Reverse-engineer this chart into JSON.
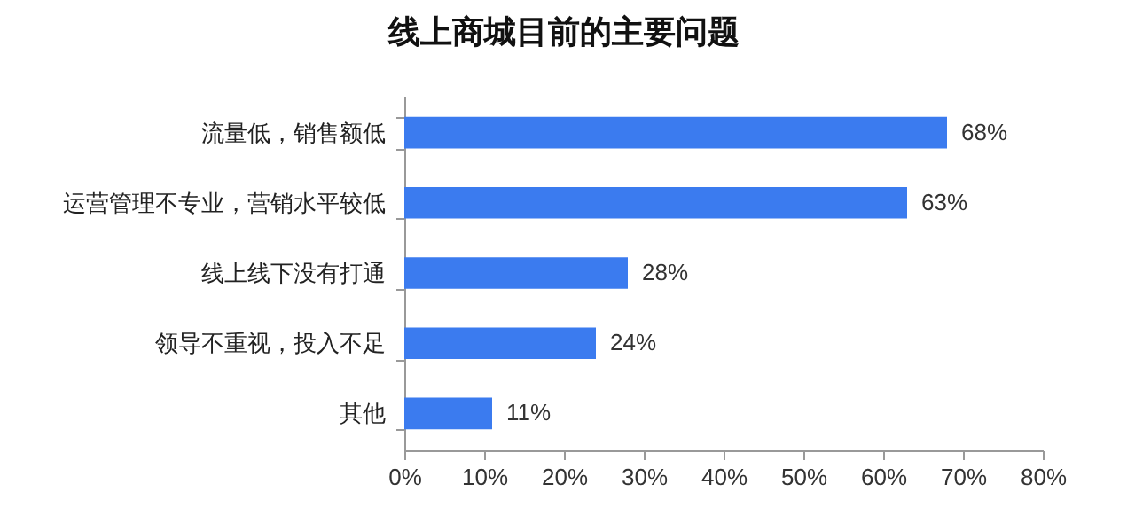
{
  "chart_data": {
    "type": "bar",
    "orientation": "horizontal",
    "title": "线上商城目前的主要问题",
    "categories": [
      "流量低，销售额低",
      "运营管理不专业，营销水平较低",
      "线上线下没有打通",
      "领导不重视，投入不足",
      "其他"
    ],
    "values": [
      68,
      63,
      28,
      24,
      11
    ],
    "color": "#3b7bef",
    "value_labels": [
      "68%",
      "63%",
      "28%",
      "24%",
      "11%"
    ],
    "xlim": [
      0,
      80
    ],
    "xticks": [
      {
        "value": 0,
        "label": "0%"
      },
      {
        "value": 10,
        "label": "10%"
      },
      {
        "value": 20,
        "label": "20%"
      },
      {
        "value": 30,
        "label": "30%"
      },
      {
        "value": 40,
        "label": "40%"
      },
      {
        "value": 50,
        "label": "50%"
      },
      {
        "value": 60,
        "label": "60%"
      },
      {
        "value": 70,
        "label": "70%"
      },
      {
        "value": 80,
        "label": "80%"
      }
    ],
    "grid": false
  }
}
